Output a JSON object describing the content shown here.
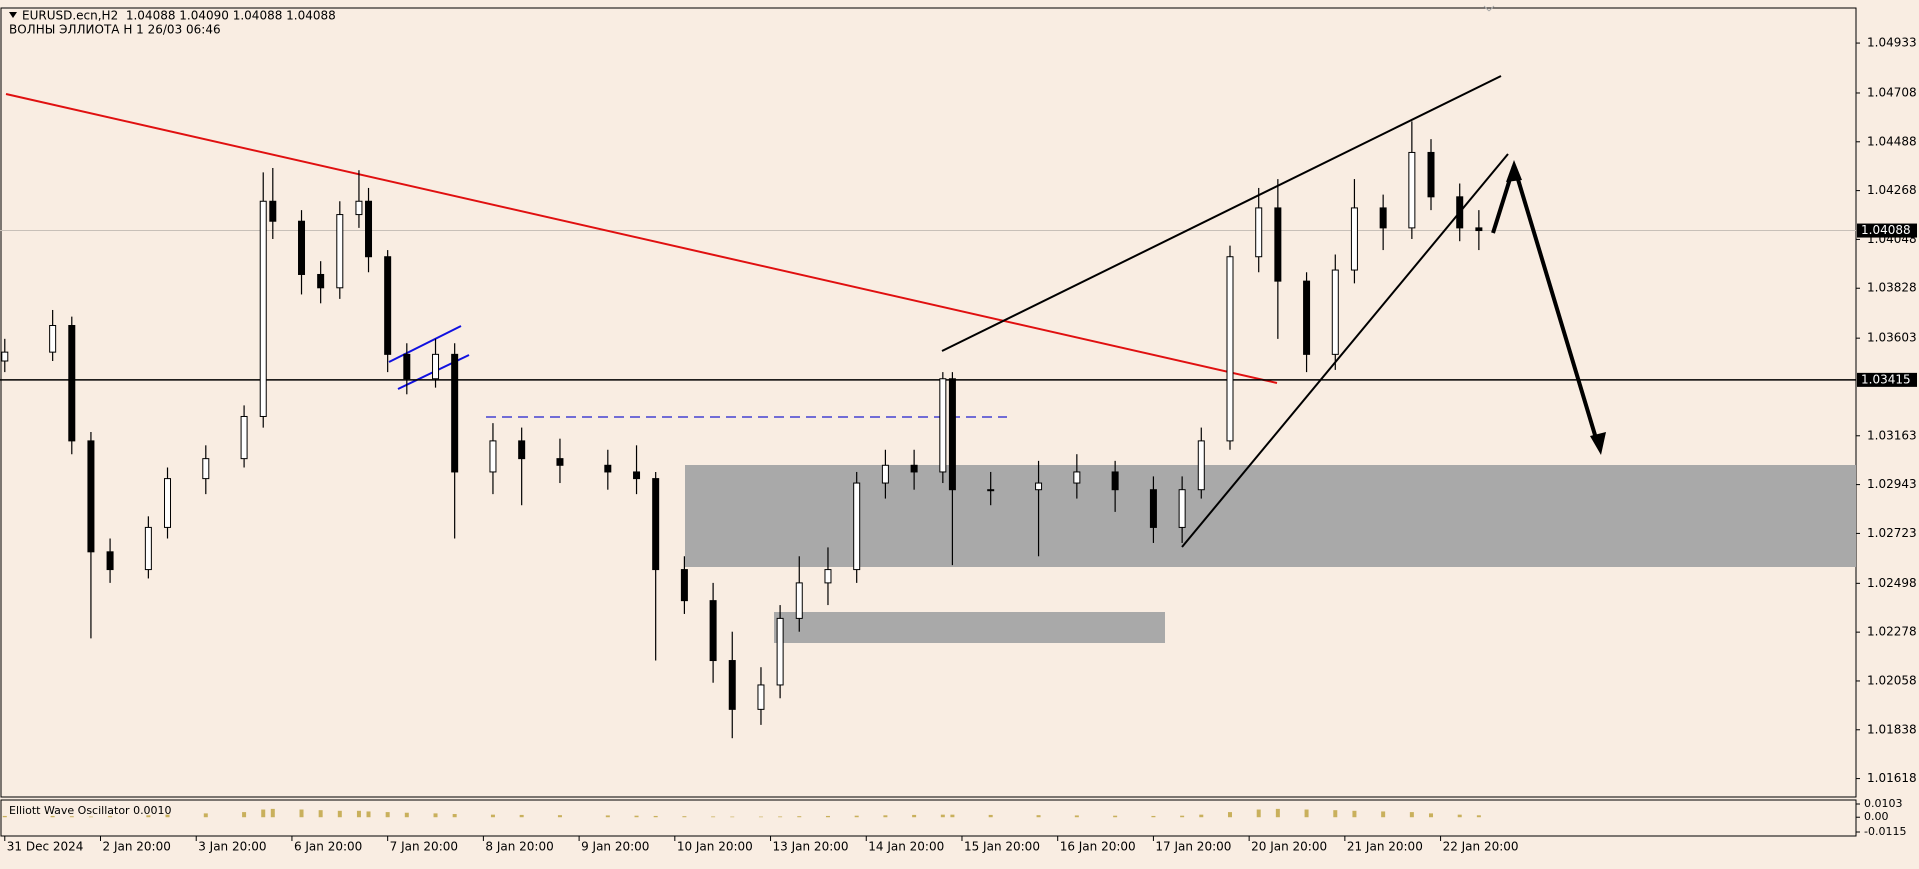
{
  "chart_data": [
    {
      "type": "candlestick",
      "title": "EURUSD.ecn,H2  1.04088 1.04090 1.04088 1.04088",
      "subtitle": "ВОЛНЫ ЭЛЛИОТА H 1 26/03 06:46",
      "x": [
        0,
        5,
        7,
        9,
        11,
        15,
        17,
        21,
        25,
        27,
        28,
        31,
        33,
        35,
        37,
        38,
        40,
        42,
        45,
        47,
        51,
        54,
        58,
        63,
        66,
        68,
        71,
        74,
        76,
        79,
        81,
        83,
        86,
        89,
        92,
        95,
        98,
        99,
        103,
        108,
        112,
        116,
        120,
        123,
        125,
        128,
        131,
        133,
        136,
        139,
        141,
        144,
        147,
        149,
        152,
        154
      ],
      "open": [
        1.035,
        1.0354,
        1.0366,
        1.0314,
        1.0264,
        1.0256,
        1.0275,
        1.0297,
        1.0306,
        1.0325,
        1.0422,
        1.0413,
        1.0389,
        1.0383,
        1.0416,
        1.0422,
        1.0397,
        1.0353,
        1.0342,
        1.0353,
        1.03,
        1.0314,
        1.0306,
        1.0303,
        1.03,
        1.0297,
        1.0256,
        1.0242,
        1.0215,
        1.0193,
        1.0204,
        1.0234,
        1.025,
        1.0256,
        1.0295,
        1.0303,
        1.03,
        1.0342,
        1.0292,
        1.0292,
        1.0295,
        1.03,
        1.0292,
        1.0275,
        1.0292,
        1.0314,
        1.0397,
        1.0419,
        1.0386,
        1.0353,
        1.0391,
        1.0419,
        1.041,
        1.0444,
        1.0424,
        1.041
      ],
      "high": [
        1.036,
        1.0373,
        1.037,
        1.0318,
        1.027,
        1.028,
        1.0302,
        1.0312,
        1.033,
        1.0435,
        1.0437,
        1.0418,
        1.0395,
        1.0422,
        1.0436,
        1.0428,
        1.04,
        1.0358,
        1.036,
        1.0358,
        1.0322,
        1.032,
        1.0315,
        1.031,
        1.0312,
        1.03,
        1.0262,
        1.025,
        1.0228,
        1.0212,
        1.024,
        1.0262,
        1.0266,
        1.03,
        1.031,
        1.031,
        1.0345,
        1.0345,
        1.03,
        1.0305,
        1.0308,
        1.0305,
        1.0298,
        1.0298,
        1.032,
        1.0402,
        1.0428,
        1.0432,
        1.039,
        1.0398,
        1.0432,
        1.0425,
        1.0458,
        1.045,
        1.043,
        1.0418
      ],
      "low": [
        1.0345,
        1.035,
        1.0308,
        1.0225,
        1.025,
        1.0252,
        1.027,
        1.029,
        1.0302,
        1.032,
        1.0405,
        1.038,
        1.0376,
        1.0378,
        1.041,
        1.039,
        1.0345,
        1.0335,
        1.0338,
        1.027,
        1.029,
        1.0285,
        1.0295,
        1.0292,
        1.029,
        1.0215,
        1.0236,
        1.0205,
        1.018,
        1.0186,
        1.0198,
        1.0228,
        1.024,
        1.025,
        1.0288,
        1.0292,
        1.0295,
        1.0258,
        1.0285,
        1.0262,
        1.0288,
        1.0282,
        1.0268,
        1.0268,
        1.0288,
        1.031,
        1.039,
        1.036,
        1.0345,
        1.0346,
        1.0385,
        1.04,
        1.0405,
        1.0418,
        1.0404,
        1.04
      ],
      "close": [
        1.0354,
        1.0366,
        1.0314,
        1.0264,
        1.0256,
        1.0275,
        1.0297,
        1.0306,
        1.0325,
        1.0422,
        1.0413,
        1.0389,
        1.0383,
        1.0416,
        1.0422,
        1.0397,
        1.0353,
        1.0342,
        1.0353,
        1.03,
        1.0314,
        1.0306,
        1.0303,
        1.03,
        1.0297,
        1.0256,
        1.0242,
        1.0215,
        1.0193,
        1.0204,
        1.0234,
        1.025,
        1.0256,
        1.0295,
        1.0303,
        1.03,
        1.0342,
        1.0292,
        1.0292,
        1.0295,
        1.03,
        1.0292,
        1.0275,
        1.0292,
        1.0314,
        1.0397,
        1.0419,
        1.0386,
        1.0353,
        1.0391,
        1.0419,
        1.041,
        1.0444,
        1.0424,
        1.041,
        1.04088
      ],
      "bull_color": "#ffffff",
      "bear_color": "#000000",
      "xlim": [
        -0.5,
        193.4
      ],
      "xticks": [
        {
          "value": 0,
          "label": "31 Dec 2024"
        },
        {
          "value": 10,
          "label": "2 Jan 20:00"
        },
        {
          "value": 20,
          "label": "3 Jan 20:00"
        },
        {
          "value": 30,
          "label": "6 Jan 20:00"
        },
        {
          "value": 40,
          "label": "7 Jan 20:00"
        },
        {
          "value": 50,
          "label": "8 Jan 20:00"
        },
        {
          "value": 60,
          "label": "9 Jan 20:00"
        },
        {
          "value": 70,
          "label": "10 Jan 20:00"
        },
        {
          "value": 80,
          "label": "13 Jan 20:00"
        },
        {
          "value": 90,
          "label": "14 Jan 20:00"
        },
        {
          "value": 100,
          "label": "15 Jan 20:00"
        },
        {
          "value": 110,
          "label": "16 Jan 20:00"
        },
        {
          "value": 120,
          "label": "17 Jan 20:00"
        },
        {
          "value": 130,
          "label": "20 Jan 20:00"
        },
        {
          "value": 140,
          "label": "21 Jan 20:00"
        },
        {
          "value": 150,
          "label": "22 Jan 20:00"
        }
      ],
      "ylim": [
        1.01535,
        1.05082
      ],
      "yticks": [
        1.04933,
        1.04708,
        1.04488,
        1.04268,
        1.04048,
        1.03828,
        1.03603,
        1.03163,
        1.02943,
        1.02723,
        1.02498,
        1.02278,
        1.02058,
        1.01838,
        1.01618
      ],
      "hline": 1.03415,
      "last_price": 1.04088
    },
    {
      "type": "bar",
      "title": "Elliott Wave Oscillator 0.0010",
      "color": "#c9b05c",
      "values": [
        0.001,
        0.001,
        0.0008,
        0.0005,
        0.0008,
        0.0015,
        0.002,
        0.003,
        0.004,
        0.006,
        0.0065,
        0.006,
        0.0055,
        0.005,
        0.005,
        0.0045,
        0.004,
        0.0035,
        0.003,
        0.0025,
        0.002,
        0.0018,
        0.0016,
        0.0014,
        0.0012,
        0.001,
        0.0008,
        0.0006,
        0.0005,
        0.0005,
        0.0006,
        0.0008,
        0.001,
        0.0012,
        0.0015,
        0.0018,
        0.002,
        0.002,
        0.0018,
        0.0016,
        0.0014,
        0.0012,
        0.001,
        0.0012,
        0.002,
        0.004,
        0.006,
        0.0065,
        0.006,
        0.0055,
        0.005,
        0.0045,
        0.004,
        0.003,
        0.002,
        0.0015
      ],
      "ylim": [
        -0.0115,
        0.0103
      ],
      "yticks": [
        0.0103,
        {
          "value": 0,
          "label": "0.00"
        },
        -0.0115
      ]
    }
  ]
}
